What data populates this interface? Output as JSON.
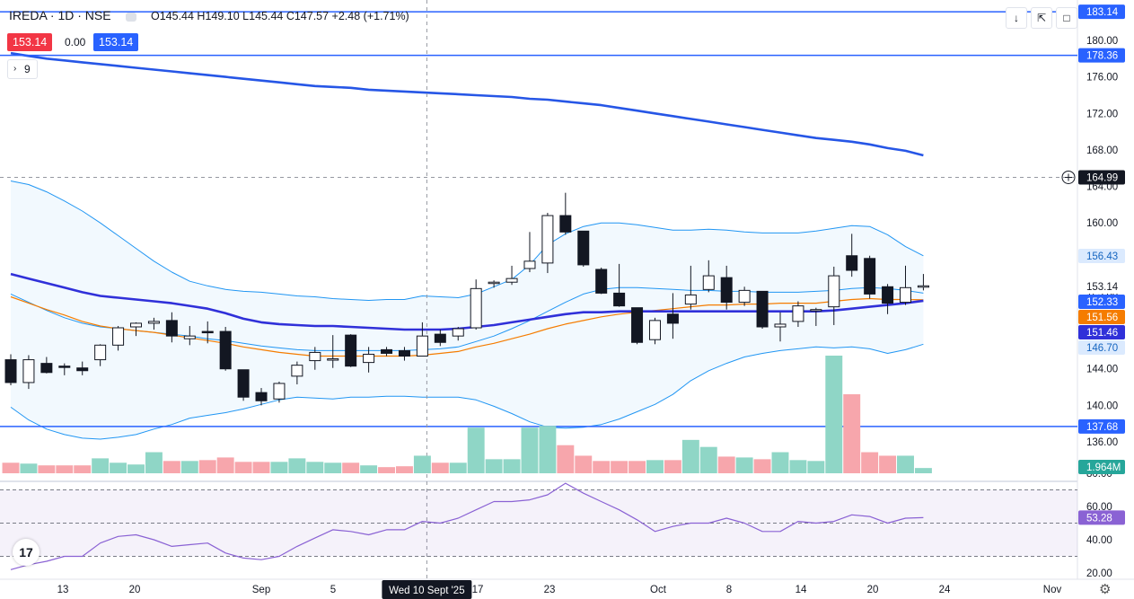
{
  "header": {
    "symbol": "IREDA · 1D · NSE",
    "ohlc": "O145.44 H149.10 L145.44 C147.57 +2.48 (+1.71%)",
    "bid": "153.14",
    "spread": "0.00",
    "ask": "153.14",
    "indicator_count": "9"
  },
  "icons": {
    "collapse": "chevron-down-icon",
    "indicator_toggle": "chevron-right-icon",
    "download": "arrow-down-icon",
    "fullscreen": "fullscreen-icon",
    "snapshot": "snapshot-icon",
    "settings": "gear-icon",
    "logo": "tradingview-logo",
    "add_alert": "plus-circle-icon"
  },
  "colors": {
    "up_body": "#ffffff",
    "down_body": "#131722",
    "vol_up": "#8fd6c6",
    "vol_down": "#f7a6ac",
    "sma200": "#2656e6",
    "bb": "#2196f3",
    "ema": "#f57c00",
    "sma50": "#3030d9",
    "rsi": "#8a62d4",
    "hline": "#2962ff"
  },
  "chart_data": {
    "type": "candlestick",
    "title": "IREDA · 1D · NSE",
    "ylim": [
      134.0,
      184.0
    ],
    "price_ticks": [
      "136.00",
      "140.00",
      "144.00",
      "148.00",
      "152.00",
      "156.00",
      "160.00",
      "164.00",
      "168.00",
      "172.00",
      "176.00",
      "180.00"
    ],
    "x_ticks": [
      "13",
      "20",
      "Sep",
      "5",
      "17",
      "23",
      "Oct",
      "8",
      "14",
      "20",
      "24",
      "Nov"
    ],
    "crosshair": {
      "date_label": "Wed 10 Sept '25",
      "price_label": "164.99"
    },
    "horizontal_lines": [
      183.14,
      178.36,
      137.68
    ],
    "badges": [
      {
        "label": "183.14",
        "color": "#2962ff"
      },
      {
        "label": "178.36",
        "color": "#2962ff"
      },
      {
        "label": "164.99",
        "color": "#131722"
      },
      {
        "label": "156.43",
        "color": "#2196f3"
      },
      {
        "label": "153.14",
        "color": "#ffffff"
      },
      {
        "label": "152.33",
        "color": "#2962ff"
      },
      {
        "label": "151.56",
        "color": "#f57c00"
      },
      {
        "label": "151.46",
        "color": "#3030d9"
      },
      {
        "label": "146.70",
        "color": "#2196f3"
      },
      {
        "label": "137.68",
        "color": "#2962ff"
      },
      {
        "label": "1.964M",
        "color": "#26a69a"
      }
    ],
    "candles": [
      {
        "o": 145.0,
        "h": 145.6,
        "l": 142.2,
        "c": 142.5
      },
      {
        "o": 142.5,
        "h": 145.5,
        "l": 141.8,
        "c": 145.0
      },
      {
        "o": 144.6,
        "h": 145.3,
        "l": 143.5,
        "c": 143.6
      },
      {
        "o": 144.3,
        "h": 144.6,
        "l": 143.3,
        "c": 144.2
      },
      {
        "o": 144.1,
        "h": 144.8,
        "l": 143.3,
        "c": 143.8
      },
      {
        "o": 145.0,
        "h": 146.7,
        "l": 144.3,
        "c": 146.6
      },
      {
        "o": 146.6,
        "h": 148.7,
        "l": 146.0,
        "c": 148.5
      },
      {
        "o": 148.6,
        "h": 149.1,
        "l": 147.6,
        "c": 149.0
      },
      {
        "o": 149.0,
        "h": 149.6,
        "l": 148.3,
        "c": 149.2
      },
      {
        "o": 149.3,
        "h": 150.2,
        "l": 146.9,
        "c": 147.6
      },
      {
        "o": 147.3,
        "h": 148.7,
        "l": 146.6,
        "c": 147.6
      },
      {
        "o": 148.1,
        "h": 149.2,
        "l": 146.8,
        "c": 148.0
      },
      {
        "o": 148.1,
        "h": 148.6,
        "l": 143.8,
        "c": 144.0
      },
      {
        "o": 143.9,
        "h": 143.9,
        "l": 140.5,
        "c": 140.9
      },
      {
        "o": 141.4,
        "h": 141.9,
        "l": 140.0,
        "c": 140.5
      },
      {
        "o": 140.7,
        "h": 142.6,
        "l": 140.3,
        "c": 142.4
      },
      {
        "o": 143.2,
        "h": 144.8,
        "l": 142.3,
        "c": 144.4
      },
      {
        "o": 144.9,
        "h": 146.4,
        "l": 143.9,
        "c": 145.8
      },
      {
        "o": 145.1,
        "h": 147.7,
        "l": 144.1,
        "c": 145.1
      },
      {
        "o": 147.7,
        "h": 147.8,
        "l": 144.2,
        "c": 144.3
      },
      {
        "o": 144.7,
        "h": 146.4,
        "l": 143.6,
        "c": 145.6
      },
      {
        "o": 146.1,
        "h": 146.4,
        "l": 145.4,
        "c": 145.7
      },
      {
        "o": 146.0,
        "h": 146.4,
        "l": 144.9,
        "c": 145.4
      },
      {
        "o": 145.4,
        "h": 149.1,
        "l": 145.4,
        "c": 147.6
      },
      {
        "o": 147.8,
        "h": 148.3,
        "l": 146.5,
        "c": 146.9
      },
      {
        "o": 147.6,
        "h": 148.6,
        "l": 147.1,
        "c": 148.4
      },
      {
        "o": 148.5,
        "h": 153.8,
        "l": 148.3,
        "c": 152.8
      },
      {
        "o": 153.5,
        "h": 153.7,
        "l": 152.9,
        "c": 153.5
      },
      {
        "o": 153.5,
        "h": 155.3,
        "l": 153.2,
        "c": 153.9
      },
      {
        "o": 155.0,
        "h": 159.0,
        "l": 154.6,
        "c": 155.8
      },
      {
        "o": 155.6,
        "h": 161.1,
        "l": 154.5,
        "c": 160.8
      },
      {
        "o": 160.8,
        "h": 163.3,
        "l": 158.7,
        "c": 159.0
      },
      {
        "o": 159.1,
        "h": 159.1,
        "l": 155.2,
        "c": 155.4
      },
      {
        "o": 154.9,
        "h": 155.1,
        "l": 152.2,
        "c": 152.3
      },
      {
        "o": 152.3,
        "h": 155.5,
        "l": 150.8,
        "c": 150.9
      },
      {
        "o": 150.7,
        "h": 150.7,
        "l": 146.7,
        "c": 146.9
      },
      {
        "o": 147.2,
        "h": 149.6,
        "l": 146.7,
        "c": 149.3
      },
      {
        "o": 150.0,
        "h": 152.3,
        "l": 147.3,
        "c": 149.0
      },
      {
        "o": 151.1,
        "h": 155.3,
        "l": 150.5,
        "c": 152.1
      },
      {
        "o": 152.7,
        "h": 155.9,
        "l": 152.4,
        "c": 154.2
      },
      {
        "o": 154.0,
        "h": 155.3,
        "l": 150.5,
        "c": 151.3
      },
      {
        "o": 151.3,
        "h": 153.0,
        "l": 150.9,
        "c": 152.6
      },
      {
        "o": 152.5,
        "h": 152.5,
        "l": 148.4,
        "c": 148.6
      },
      {
        "o": 148.6,
        "h": 150.2,
        "l": 147.0,
        "c": 148.9
      },
      {
        "o": 149.2,
        "h": 151.4,
        "l": 148.6,
        "c": 150.9
      },
      {
        "o": 150.4,
        "h": 150.7,
        "l": 148.7,
        "c": 150.5
      },
      {
        "o": 150.8,
        "h": 155.2,
        "l": 148.8,
        "c": 154.2
      },
      {
        "o": 156.4,
        "h": 158.8,
        "l": 154.1,
        "c": 154.8
      },
      {
        "o": 156.1,
        "h": 156.4,
        "l": 151.7,
        "c": 152.2
      },
      {
        "o": 153.0,
        "h": 153.3,
        "l": 150.0,
        "c": 151.2
      },
      {
        "o": 151.3,
        "h": 155.3,
        "l": 151.0,
        "c": 152.9
      },
      {
        "o": 153.1,
        "h": 154.4,
        "l": 152.6,
        "c": 153.1
      }
    ],
    "volume_series": {
      "name": "Volume",
      "values": [
        0.6,
        0.55,
        0.45,
        0.45,
        0.45,
        0.85,
        0.6,
        0.5,
        1.2,
        0.7,
        0.7,
        0.75,
        0.9,
        0.65,
        0.65,
        0.65,
        0.85,
        0.65,
        0.6,
        0.6,
        0.45,
        0.35,
        0.4,
        1.0,
        0.6,
        0.6,
        2.6,
        0.8,
        0.8,
        2.6,
        2.7,
        1.6,
        1.0,
        0.7,
        0.7,
        0.7,
        0.75,
        0.75,
        1.9,
        1.5,
        0.95,
        0.9,
        0.8,
        1.2,
        0.75,
        0.7,
        6.7,
        4.5,
        1.2,
        1.0,
        1.0,
        0.3
      ],
      "last_label": "1.964M"
    },
    "bollinger": {
      "upper": [
        164.6,
        164.2,
        163.4,
        162.4,
        161.3,
        160.0,
        158.6,
        157.2,
        155.8,
        154.6,
        153.6,
        153.1,
        152.7,
        152.5,
        152.4,
        152.2,
        152.0,
        151.9,
        151.7,
        151.6,
        151.5,
        151.6,
        151.6,
        152.0,
        151.9,
        151.8,
        152.2,
        153.0,
        153.8,
        155.4,
        157.6,
        158.8,
        159.6,
        160.0,
        160.0,
        159.8,
        159.5,
        159.2,
        159.2,
        159.3,
        159.2,
        159.0,
        158.9,
        158.9,
        158.9,
        159.1,
        159.4,
        159.7,
        159.6,
        158.7,
        157.4,
        156.4
      ],
      "middle": [
        152.2,
        151.3,
        150.4,
        149.6,
        149.0,
        148.6,
        148.4,
        148.2,
        148.0,
        147.8,
        147.6,
        147.3,
        147.1,
        146.8,
        146.5,
        146.3,
        146.1,
        146.0,
        146.0,
        146.0,
        146.0,
        146.0,
        146.0,
        146.1,
        146.2,
        146.4,
        147.0,
        147.6,
        148.4,
        149.3,
        150.3,
        151.3,
        152.2,
        152.7,
        152.9,
        152.9,
        152.8,
        152.7,
        152.6,
        152.6,
        152.5,
        152.5,
        152.4,
        152.4,
        152.4,
        152.5,
        152.6,
        152.8,
        152.9,
        152.8,
        152.6,
        152.3
      ],
      "lower": [
        139.8,
        138.4,
        137.4,
        136.8,
        136.4,
        136.3,
        136.5,
        136.8,
        137.4,
        137.9,
        138.6,
        138.9,
        139.2,
        139.6,
        140.1,
        140.6,
        140.9,
        140.8,
        140.7,
        140.9,
        140.9,
        141.0,
        141.0,
        140.9,
        140.9,
        140.9,
        140.6,
        139.9,
        139.1,
        138.2,
        137.6,
        137.5,
        137.6,
        137.9,
        138.5,
        139.3,
        140.1,
        141.2,
        142.7,
        143.8,
        144.6,
        145.3,
        145.7,
        146.0,
        146.2,
        146.4,
        146.3,
        146.4,
        146.2,
        145.7,
        146.1,
        146.7
      ]
    },
    "ema": [
      151.9,
      151.2,
      150.5,
      149.9,
      149.2,
      148.7,
      148.4,
      148.2,
      148.0,
      147.7,
      147.4,
      147.1,
      146.8,
      146.4,
      146.1,
      145.8,
      145.6,
      145.4,
      145.4,
      145.4,
      145.4,
      145.4,
      145.4,
      145.5,
      145.7,
      145.9,
      146.4,
      146.8,
      147.3,
      147.8,
      148.4,
      148.9,
      149.3,
      149.7,
      150.0,
      150.2,
      150.4,
      150.6,
      150.8,
      151.0,
      151.0,
      151.1,
      151.1,
      151.2,
      151.2,
      151.2,
      151.4,
      151.6,
      151.7,
      151.6,
      151.6,
      151.56
    ],
    "sma50": [
      154.4,
      153.9,
      153.4,
      152.9,
      152.4,
      152.0,
      151.8,
      151.6,
      151.4,
      151.2,
      150.9,
      150.6,
      150.1,
      149.5,
      149.1,
      148.9,
      148.8,
      148.7,
      148.7,
      148.6,
      148.5,
      148.4,
      148.3,
      148.3,
      148.3,
      148.4,
      148.6,
      148.8,
      149.1,
      149.4,
      149.7,
      150.0,
      150.2,
      150.2,
      150.3,
      150.3,
      150.3,
      150.3,
      150.3,
      150.3,
      150.3,
      150.3,
      150.3,
      150.3,
      150.3,
      150.3,
      150.4,
      150.6,
      150.8,
      151.0,
      151.2,
      151.46
    ],
    "sma200": [
      178.6,
      178.3,
      178.0,
      177.8,
      177.6,
      177.4,
      177.2,
      177.0,
      176.8,
      176.6,
      176.4,
      176.2,
      176.0,
      175.8,
      175.6,
      175.4,
      175.2,
      175.0,
      174.9,
      174.8,
      174.6,
      174.5,
      174.4,
      174.3,
      174.2,
      174.1,
      174.0,
      173.9,
      173.8,
      173.6,
      173.5,
      173.3,
      173.1,
      172.9,
      172.6,
      172.3,
      172.0,
      171.7,
      171.4,
      171.1,
      170.8,
      170.5,
      170.2,
      169.9,
      169.6,
      169.3,
      169.1,
      168.9,
      168.6,
      168.2,
      167.9,
      167.4
    ],
    "rsi": {
      "name": "RSI",
      "ticks": [
        "80.00",
        "60.00",
        "40.00",
        "20.00"
      ],
      "levels": [
        70,
        50,
        30
      ],
      "values": [
        22,
        25,
        27,
        30,
        30,
        38,
        42,
        43,
        40,
        36,
        37,
        38,
        32,
        29,
        28,
        30,
        36,
        41,
        46,
        45,
        43,
        46,
        46,
        51,
        50,
        53,
        58,
        63,
        63,
        64,
        67,
        74,
        68,
        63,
        58,
        52,
        45,
        48,
        50,
        50,
        53,
        50,
        45,
        45,
        51,
        50,
        51,
        55,
        54,
        50,
        53,
        53.28
      ],
      "last_label": "53.28"
    }
  }
}
